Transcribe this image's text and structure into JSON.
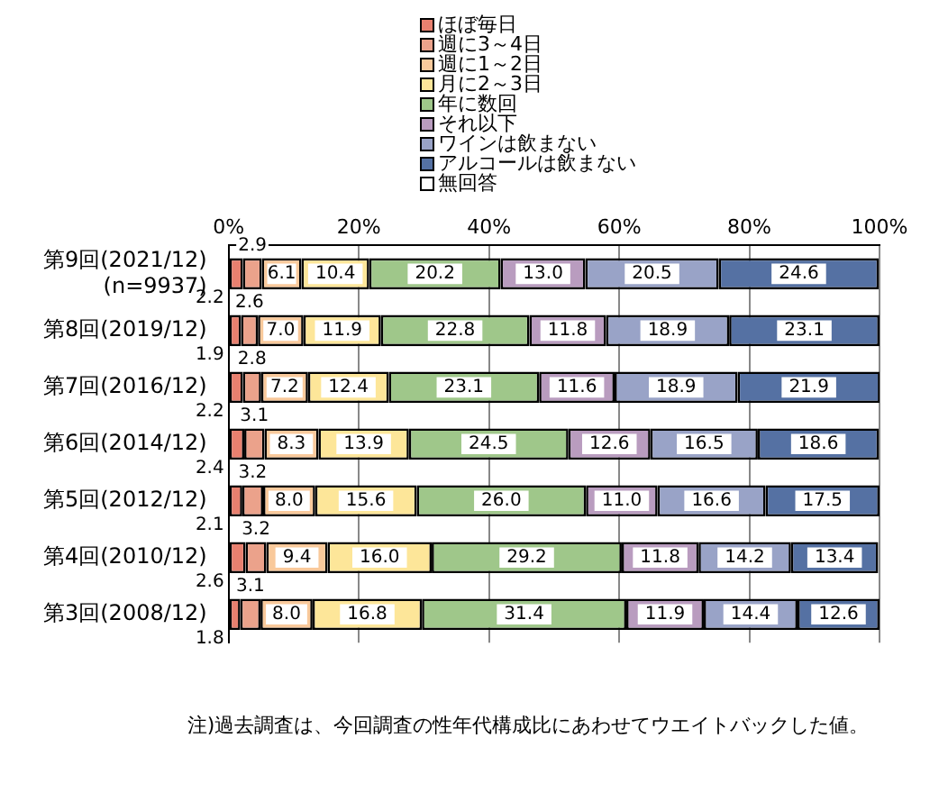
{
  "chart_data": {
    "type": "bar",
    "orientation": "horizontal",
    "stacked": true,
    "categories": [
      "第9回(2021/12)\n(n=9937)",
      "第8回(2019/12)",
      "第7回(2016/12)",
      "第6回(2014/12)",
      "第5回(2012/12)",
      "第4回(2010/12)",
      "第3回(2008/12)"
    ],
    "series": [
      {
        "name": "ほぼ毎日",
        "color": "#e8806f",
        "values": [
          2.2,
          1.9,
          2.2,
          2.4,
          2.1,
          2.6,
          1.8
        ],
        "value_labels": [
          "2.2",
          "1.9",
          "2.2",
          "2.4",
          "2.1",
          "2.6",
          "1.8"
        ]
      },
      {
        "name": "週に3～4日",
        "color": "#eba28b",
        "values": [
          2.9,
          2.6,
          2.8,
          3.1,
          3.2,
          3.2,
          3.1
        ],
        "value_labels": [
          "2.9",
          "2.6",
          "2.8",
          "3.1",
          "3.2",
          "3.2",
          "3.1"
        ]
      },
      {
        "name": "週に1～2日",
        "color": "#f9c99b",
        "values": [
          6.1,
          7.0,
          7.2,
          8.3,
          8.0,
          9.4,
          8.0
        ],
        "value_labels": [
          "6.1",
          "7.0",
          "7.2",
          "8.3",
          "8.0",
          "9.4",
          "8.0"
        ]
      },
      {
        "name": "月に2～3日",
        "color": "#fde699",
        "values": [
          10.4,
          11.9,
          12.4,
          13.9,
          15.6,
          16.0,
          16.8
        ],
        "value_labels": [
          "10.4",
          "11.9",
          "12.4",
          "13.9",
          "15.6",
          "16.0",
          "16.8"
        ]
      },
      {
        "name": "年に数回",
        "color": "#9fc78a",
        "values": [
          20.2,
          22.8,
          23.1,
          24.5,
          26.0,
          29.2,
          31.4
        ],
        "value_labels": [
          "20.2",
          "22.8",
          "23.1",
          "24.5",
          "26.0",
          "29.2",
          "31.4"
        ]
      },
      {
        "name": "それ以下",
        "color": "#b99cbf",
        "values": [
          13.0,
          11.8,
          11.6,
          12.6,
          11.0,
          11.8,
          11.9
        ],
        "value_labels": [
          "13.0",
          "11.8",
          "11.6",
          "12.6",
          "11.0",
          "11.8",
          "11.9"
        ]
      },
      {
        "name": "ワインは飲まない",
        "color": "#99a3c7",
        "values": [
          20.5,
          18.9,
          18.9,
          16.5,
          16.6,
          14.2,
          14.4
        ],
        "value_labels": [
          "20.5",
          "18.9",
          "18.9",
          "16.5",
          "16.6",
          "14.2",
          "14.4"
        ]
      },
      {
        "name": "アルコールは飲まない",
        "color": "#5571a3",
        "values": [
          24.6,
          23.1,
          21.9,
          18.6,
          17.5,
          13.4,
          12.6
        ],
        "value_labels": [
          "24.6",
          "23.1",
          "21.9",
          "18.6",
          "17.5",
          "13.4",
          "12.6"
        ]
      },
      {
        "name": "無回答",
        "color": "#ffffff",
        "values": [
          null,
          null,
          null,
          null,
          null,
          null,
          null
        ]
      }
    ],
    "xlim": [
      0,
      100
    ],
    "xticks": [
      {
        "value": 0,
        "label": "0%"
      },
      {
        "value": 20,
        "label": "20%"
      },
      {
        "value": 40,
        "label": "40%"
      },
      {
        "value": 60,
        "label": "60%"
      },
      {
        "value": 80,
        "label": "80%"
      },
      {
        "value": 100,
        "label": "100%"
      }
    ],
    "grid": "x",
    "legend": "top",
    "annotations": [
      "注)過去調査は、今回調査の性年代構成比にあわせてウエイトバックした値。"
    ]
  }
}
